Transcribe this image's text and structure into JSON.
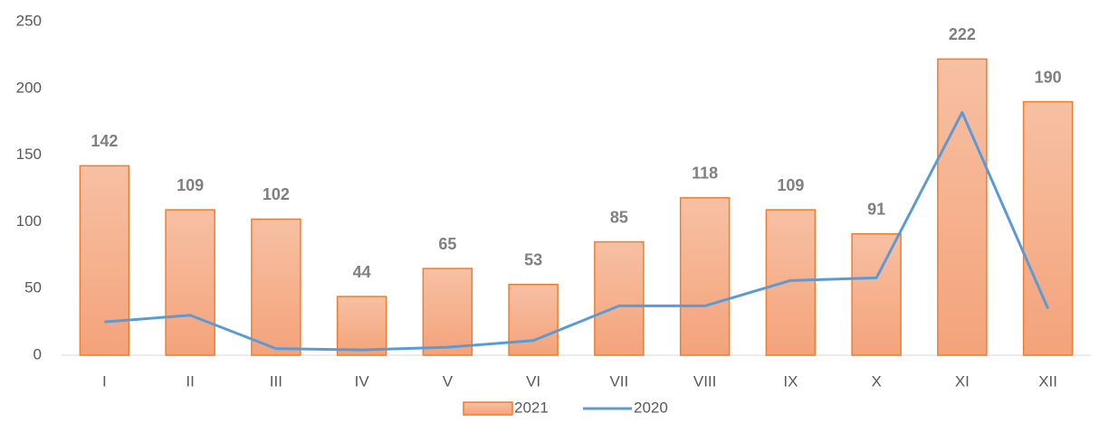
{
  "chart_data": {
    "type": "bar",
    "categories": [
      "I",
      "II",
      "III",
      "IV",
      "V",
      "VI",
      "VII",
      "VIII",
      "IX",
      "X",
      "XI",
      "XII"
    ],
    "series": [
      {
        "name": "2021",
        "type": "bar",
        "color": "#ed7d31",
        "values": [
          142,
          109,
          102,
          44,
          65,
          53,
          85,
          118,
          109,
          91,
          222,
          190
        ]
      },
      {
        "name": "2020",
        "type": "line",
        "color": "#5b9bd5",
        "values": [
          25,
          30,
          5,
          4,
          6,
          11,
          37,
          37,
          56,
          58,
          182,
          35
        ]
      }
    ],
    "ylim": [
      0,
      250
    ],
    "yticks": [
      0,
      50,
      100,
      150,
      200,
      250
    ],
    "grid": false,
    "legend": "bottom"
  }
}
